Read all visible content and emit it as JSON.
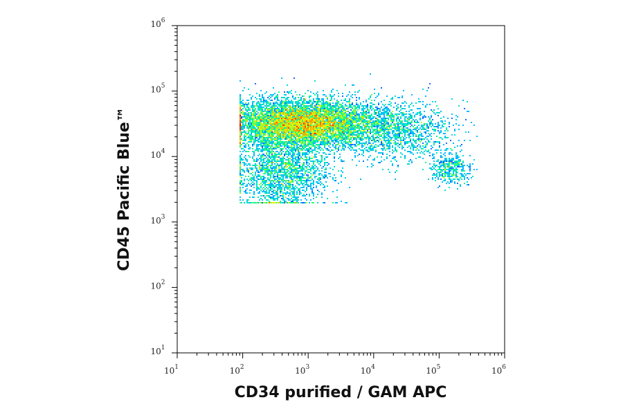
{
  "chart_data": {
    "type": "scatter",
    "subtype": "density-dot-plot",
    "title": "",
    "xlabel": "CD34 purified / GAM APC",
    "ylabel": "CD45 Pacific Blue™",
    "x_scale": "log",
    "y_scale": "log",
    "xlim": [
      10.0,
      1000000.0
    ],
    "ylim": [
      10.0,
      1000000.0
    ],
    "x_ticks": [
      {
        "value": 10,
        "base": "10",
        "exp": "1"
      },
      {
        "value": 100,
        "base": "10",
        "exp": "2"
      },
      {
        "value": 1000,
        "base": "10",
        "exp": "3"
      },
      {
        "value": 10000,
        "base": "10",
        "exp": "4"
      },
      {
        "value": 100000,
        "base": "10",
        "exp": "5"
      },
      {
        "value": 1000000,
        "base": "10",
        "exp": "6"
      }
    ],
    "y_ticks": [
      {
        "value": 10,
        "base": "10",
        "exp": "1"
      },
      {
        "value": 100,
        "base": "10",
        "exp": "2"
      },
      {
        "value": 1000,
        "base": "10",
        "exp": "3"
      },
      {
        "value": 10000,
        "base": "10",
        "exp": "4"
      },
      {
        "value": 100000,
        "base": "10",
        "exp": "5"
      },
      {
        "value": 1000000,
        "base": "10",
        "exp": "6"
      }
    ],
    "grid": false,
    "legend": "none",
    "color_scale": [
      "#0000cc",
      "#1e50ff",
      "#00c8ff",
      "#00ff90",
      "#e6ff00",
      "#ff8c00",
      "#e60000"
    ],
    "populations": [
      {
        "name": "",
        "center_x": 800,
        "center_y": 32000,
        "spread_x_decades": 0.55,
        "spread_y_decades": 0.18,
        "weight": 0.62
      },
      {
        "name": "",
        "center_x": 400,
        "center_y": 6000,
        "spread_x_decades": 0.35,
        "spread_y_decades": 0.3,
        "weight": 0.18
      },
      {
        "name": "",
        "center_x": 20000,
        "center_y": 25000,
        "spread_x_decades": 0.45,
        "spread_y_decades": 0.22,
        "weight": 0.12
      },
      {
        "name": "",
        "center_x": 150000,
        "center_y": 6500,
        "spread_x_decades": 0.15,
        "spread_y_decades": 0.12,
        "weight": 0.03
      }
    ],
    "bounds_x": [
      90,
      400000
    ],
    "bounds_y": [
      2000,
      180000
    ]
  }
}
